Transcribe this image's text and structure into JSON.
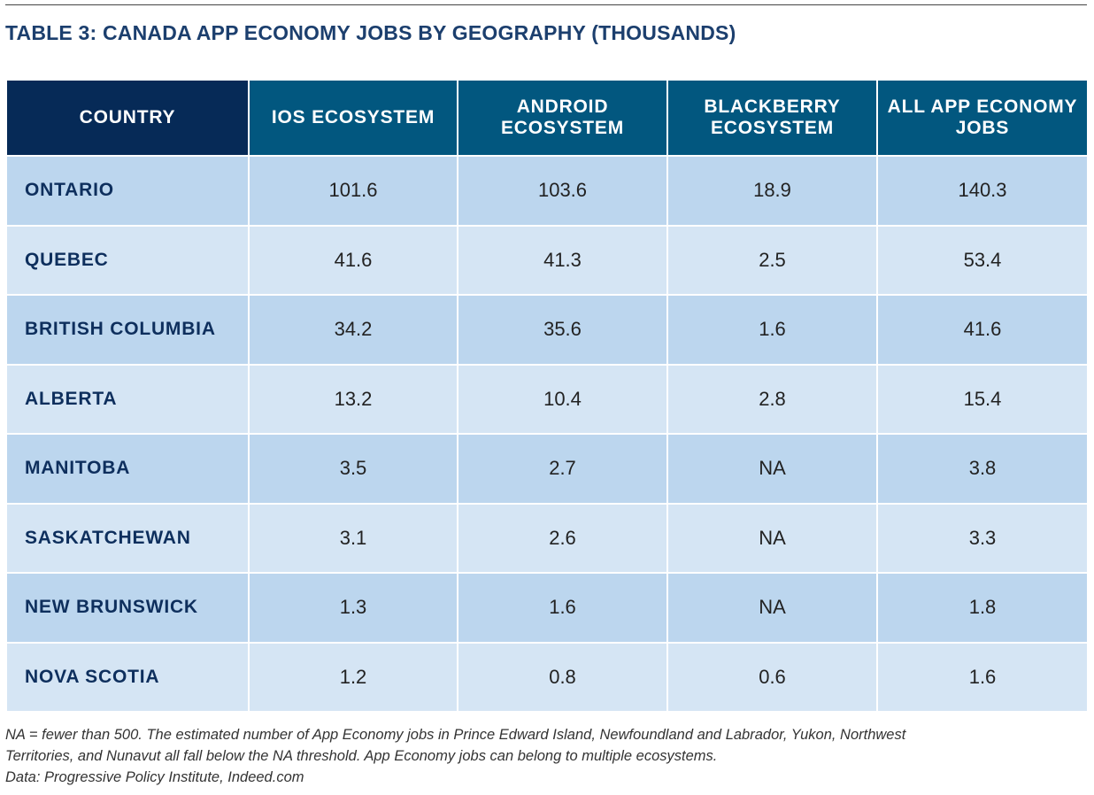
{
  "title": "TABLE 3: CANADA APP ECONOMY JOBS BY GEOGRAPHY (THOUSANDS)",
  "table": {
    "headers": [
      "COUNTRY",
      "IOS ECOSYSTEM",
      "ANDROID\nECOSYSTEM",
      "BLACKBERRY\nECOSYSTEM",
      "ALL APP ECONOMY\nJOBS"
    ],
    "rows": [
      [
        "ONTARIO",
        "101.6",
        "103.6",
        "18.9",
        "140.3"
      ],
      [
        "QUEBEC",
        "41.6",
        "41.3",
        "2.5",
        "53.4"
      ],
      [
        "BRITISH COLUMBIA",
        "34.2",
        "35.6",
        "1.6",
        "41.6"
      ],
      [
        "ALBERTA",
        "13.2",
        "10.4",
        "2.8",
        "15.4"
      ],
      [
        "MANITOBA",
        "3.5",
        "2.7",
        "NA",
        "3.8"
      ],
      [
        "SASKATCHEWAN",
        "3.1",
        "2.6",
        "NA",
        "3.3"
      ],
      [
        "NEW BRUNSWICK",
        "1.3",
        "1.6",
        "NA",
        "1.8"
      ],
      [
        "NOVA SCOTIA",
        "1.2",
        "0.8",
        "0.6",
        "1.6"
      ]
    ]
  },
  "footnote": {
    "line1": "NA = fewer than 500. The estimated number of App Economy jobs in Prince Edward Island, Newfoundland and Labrador, Yukon, Northwest",
    "line2": "Territories, and Nunavut all fall below the NA threshold. App Economy jobs can belong to multiple ecosystems.",
    "line3": "Data: Progressive Policy Institute, Indeed.com"
  },
  "colors": {
    "header_first": "#062a57",
    "header_other": "#02577f",
    "row_odd": "#bcd6ee",
    "row_even": "#d5e5f4",
    "title": "#1c3f6e",
    "row_label": "#0e2f5d"
  }
}
